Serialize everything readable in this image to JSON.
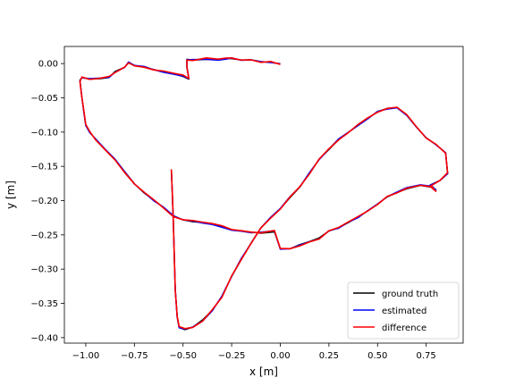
{
  "chart_data": {
    "type": "line",
    "xlabel": "x [m]",
    "ylabel": "y [m]",
    "xlim": [
      -1.11,
      0.94
    ],
    "ylim": [
      -0.408,
      0.025
    ],
    "xticks": [
      -1.0,
      -0.75,
      -0.5,
      -0.25,
      0.0,
      0.25,
      0.5,
      0.75
    ],
    "xtick_labels": [
      "−1.00",
      "−0.75",
      "−0.50",
      "−0.25",
      "0.00",
      "0.25",
      "0.50",
      "0.75"
    ],
    "yticks": [
      0.0,
      -0.05,
      -0.1,
      -0.15,
      -0.2,
      -0.25,
      -0.3,
      -0.35,
      -0.4
    ],
    "ytick_labels": [
      "0.00",
      "−0.05",
      "−0.10",
      "−0.15",
      "−0.20",
      "−0.25",
      "−0.30",
      "−0.35",
      "−0.40"
    ],
    "grid": false,
    "legend_position": "lower-right",
    "series": [
      {
        "name": "ground truth",
        "color": "#000000"
      },
      {
        "name": "estimated",
        "color": "#0000ff"
      },
      {
        "name": "difference",
        "color": "#ff0000"
      }
    ],
    "path": [
      [
        0.0,
        0.0
      ],
      [
        -0.05,
        0.002
      ],
      [
        -0.1,
        0.003
      ],
      [
        -0.15,
        0.006
      ],
      [
        -0.2,
        0.005
      ],
      [
        -0.25,
        0.008
      ],
      [
        -0.28,
        0.007
      ],
      [
        -0.32,
        0.006
      ],
      [
        -0.38,
        0.007
      ],
      [
        -0.45,
        0.005
      ],
      [
        -0.48,
        0.006
      ],
      [
        -0.48,
        -0.005
      ],
      [
        -0.47,
        -0.022
      ],
      [
        -0.5,
        -0.018
      ],
      [
        -0.55,
        -0.015
      ],
      [
        -0.6,
        -0.012
      ],
      [
        -0.65,
        -0.008
      ],
      [
        -0.7,
        -0.005
      ],
      [
        -0.75,
        -0.002
      ],
      [
        -0.78,
        0.002
      ],
      [
        -0.8,
        -0.005
      ],
      [
        -0.85,
        -0.012
      ],
      [
        -0.88,
        -0.02
      ],
      [
        -0.93,
        -0.022
      ],
      [
        -0.98,
        -0.022
      ],
      [
        -1.02,
        -0.02
      ],
      [
        -1.03,
        -0.025
      ],
      [
        -1.02,
        -0.05
      ],
      [
        -1.01,
        -0.07
      ],
      [
        -1.0,
        -0.09
      ],
      [
        -0.98,
        -0.1
      ],
      [
        -0.95,
        -0.11
      ],
      [
        -0.9,
        -0.125
      ],
      [
        -0.85,
        -0.14
      ],
      [
        -0.8,
        -0.158
      ],
      [
        -0.75,
        -0.175
      ],
      [
        -0.7,
        -0.188
      ],
      [
        -0.65,
        -0.2
      ],
      [
        -0.6,
        -0.21
      ],
      [
        -0.55,
        -0.222
      ],
      [
        -0.5,
        -0.228
      ],
      [
        -0.45,
        -0.23
      ],
      [
        -0.4,
        -0.232
      ],
      [
        -0.35,
        -0.234
      ],
      [
        -0.3,
        -0.238
      ],
      [
        -0.25,
        -0.243
      ],
      [
        -0.2,
        -0.244
      ],
      [
        -0.15,
        -0.246
      ],
      [
        -0.1,
        -0.247
      ],
      [
        -0.03,
        -0.245
      ],
      [
        0.0,
        -0.27
      ],
      [
        0.05,
        -0.27
      ],
      [
        0.1,
        -0.265
      ],
      [
        0.15,
        -0.26
      ],
      [
        0.2,
        -0.255
      ],
      [
        0.25,
        -0.245
      ],
      [
        0.3,
        -0.24
      ],
      [
        0.35,
        -0.232
      ],
      [
        0.4,
        -0.224
      ],
      [
        0.45,
        -0.215
      ],
      [
        0.5,
        -0.205
      ],
      [
        0.55,
        -0.195
      ],
      [
        0.6,
        -0.188
      ],
      [
        0.65,
        -0.182
      ],
      [
        0.72,
        -0.178
      ],
      [
        0.78,
        -0.18
      ],
      [
        0.8,
        -0.185
      ],
      [
        0.77,
        -0.178
      ],
      [
        0.82,
        -0.17
      ],
      [
        0.86,
        -0.16
      ],
      [
        0.85,
        -0.13
      ],
      [
        0.8,
        -0.118
      ],
      [
        0.75,
        -0.108
      ],
      [
        0.7,
        -0.092
      ],
      [
        0.65,
        -0.075
      ],
      [
        0.6,
        -0.065
      ],
      [
        0.55,
        -0.066
      ],
      [
        0.5,
        -0.07
      ],
      [
        0.45,
        -0.08
      ],
      [
        0.4,
        -0.09
      ],
      [
        0.35,
        -0.1
      ],
      [
        0.3,
        -0.11
      ],
      [
        0.25,
        -0.125
      ],
      [
        0.2,
        -0.14
      ],
      [
        0.15,
        -0.16
      ],
      [
        0.1,
        -0.18
      ],
      [
        0.05,
        -0.195
      ],
      [
        0.0,
        -0.212
      ],
      [
        -0.05,
        -0.225
      ],
      [
        -0.1,
        -0.24
      ],
      [
        -0.15,
        -0.262
      ],
      [
        -0.2,
        -0.285
      ],
      [
        -0.25,
        -0.31
      ],
      [
        -0.3,
        -0.34
      ],
      [
        -0.35,
        -0.36
      ],
      [
        -0.4,
        -0.375
      ],
      [
        -0.45,
        -0.385
      ],
      [
        -0.49,
        -0.388
      ],
      [
        -0.52,
        -0.385
      ],
      [
        -0.53,
        -0.37
      ],
      [
        -0.54,
        -0.33
      ],
      [
        -0.545,
        -0.28
      ],
      [
        -0.55,
        -0.23
      ],
      [
        -0.555,
        -0.19
      ],
      [
        -0.56,
        -0.155
      ]
    ]
  }
}
